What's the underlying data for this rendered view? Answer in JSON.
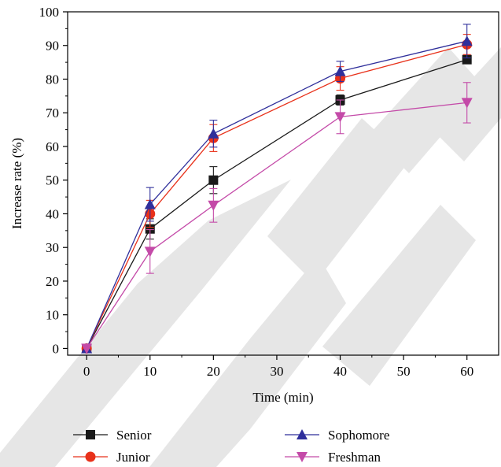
{
  "chart_data": {
    "type": "line",
    "title": "",
    "xlabel": "Time (min)",
    "ylabel": "Increase rate (%)",
    "xlim": [
      -3,
      65
    ],
    "ylim": [
      -2,
      100
    ],
    "xticks": [
      0,
      10,
      20,
      30,
      40,
      50,
      60
    ],
    "yticks": [
      0,
      10,
      20,
      30,
      40,
      50,
      60,
      70,
      80,
      90,
      100
    ],
    "legend_position": "bottom",
    "x": [
      0,
      10,
      20,
      40,
      60
    ],
    "series": [
      {
        "name": "Senior",
        "color": "#1a1a1a",
        "marker": "square",
        "values": [
          0,
          35.5,
          50,
          73.8,
          85.8
        ],
        "errors": [
          0,
          3,
          4,
          1.5,
          1
        ]
      },
      {
        "name": "Junior",
        "color": "#e8311a",
        "marker": "circle",
        "values": [
          0,
          40,
          62.5,
          80.2,
          90.3
        ],
        "errors": [
          0,
          4,
          4,
          3.5,
          3
        ]
      },
      {
        "name": "Sophomore",
        "color": "#2f2f9b",
        "marker": "triangle-up",
        "values": [
          0,
          42.8,
          63.8,
          82.3,
          91.3
        ],
        "errors": [
          0,
          5,
          4,
          3,
          5
        ]
      },
      {
        "name": "Freshman",
        "color": "#c44aa8",
        "marker": "triangle-down",
        "values": [
          0,
          28.8,
          42.5,
          68.8,
          73
        ],
        "errors": [
          0,
          6.5,
          5,
          5,
          6
        ]
      }
    ],
    "watermark_color": "#e6e6e6"
  }
}
